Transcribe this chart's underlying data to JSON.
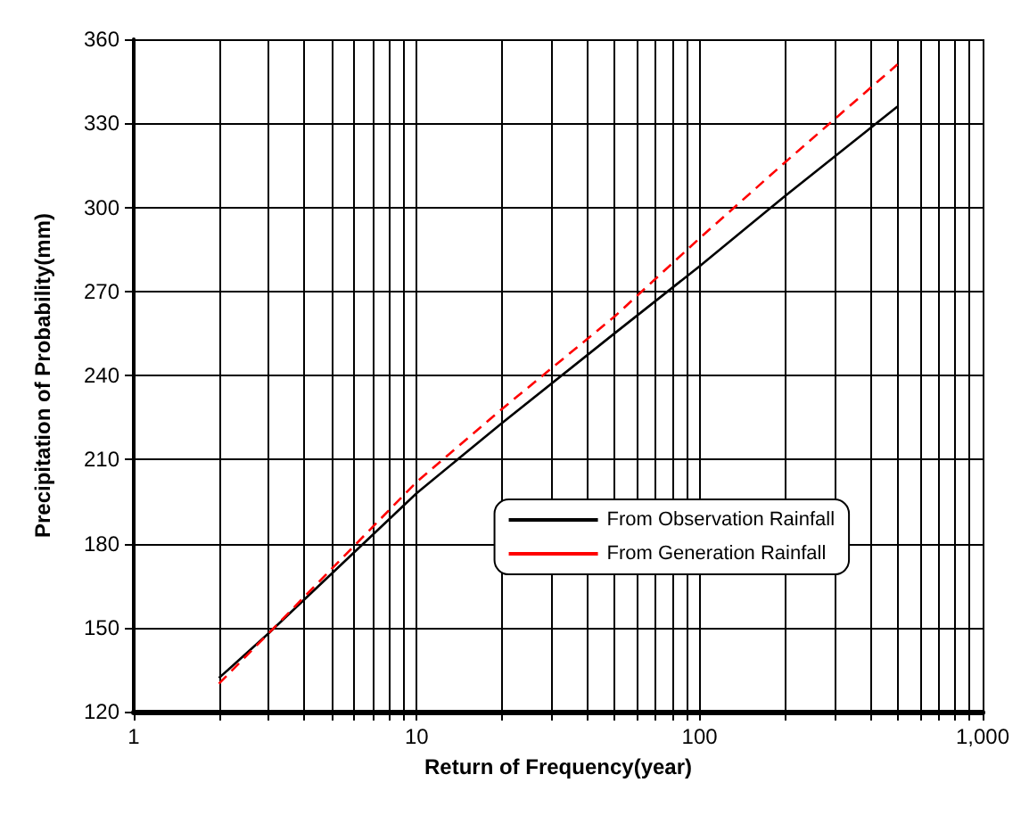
{
  "chart_data": {
    "type": "line",
    "xlabel": "Return of Frequency(year)",
    "ylabel": "Precipitation of Probability(mm)",
    "log": "x",
    "grid": true,
    "legend": "bottom right",
    "marker": "none",
    "xlim": [
      1,
      1000
    ],
    "ylim": [
      120,
      360
    ],
    "xticks": [
      1,
      {
        "value": 2,
        "label": null
      },
      {
        "value": 3,
        "label": null
      },
      {
        "value": 4,
        "label": null
      },
      {
        "value": 5,
        "label": null
      },
      {
        "value": 6,
        "label": null
      },
      {
        "value": 7,
        "label": null
      },
      {
        "value": 8,
        "label": null
      },
      {
        "value": 9,
        "label": null
      },
      10,
      {
        "value": 20,
        "label": null
      },
      {
        "value": 30,
        "label": null
      },
      {
        "value": 40,
        "label": null
      },
      {
        "value": 50,
        "label": null
      },
      {
        "value": 60,
        "label": null
      },
      {
        "value": 70,
        "label": null
      },
      {
        "value": 80,
        "label": null
      },
      {
        "value": 90,
        "label": null
      },
      100,
      {
        "value": 200,
        "label": null
      },
      {
        "value": 300,
        "label": null
      },
      {
        "value": 400,
        "label": null
      },
      {
        "value": 500,
        "label": null
      },
      {
        "value": 600,
        "label": null
      },
      {
        "value": 700,
        "label": null
      },
      {
        "value": 800,
        "label": null
      },
      {
        "value": 900,
        "label": null
      },
      {
        "value": 1000,
        "label": "1,000"
      }
    ],
    "yticks": [
      120,
      150,
      180,
      210,
      240,
      270,
      300,
      330,
      360
    ],
    "x": [
      2,
      3,
      10,
      20,
      50,
      100,
      200,
      500
    ],
    "series": [
      {
        "name": "From Observation Rainfall",
        "color": "#000000",
        "line_style": "solid",
        "values": [
          132,
          148,
          198,
          223,
          255,
          279,
          304,
          336
        ]
      },
      {
        "name": "From Generation Rainfall",
        "color": "#ff0000",
        "line_style": "dashed",
        "values": [
          130,
          148,
          202,
          228,
          261,
          289,
          316,
          351
        ]
      }
    ]
  }
}
